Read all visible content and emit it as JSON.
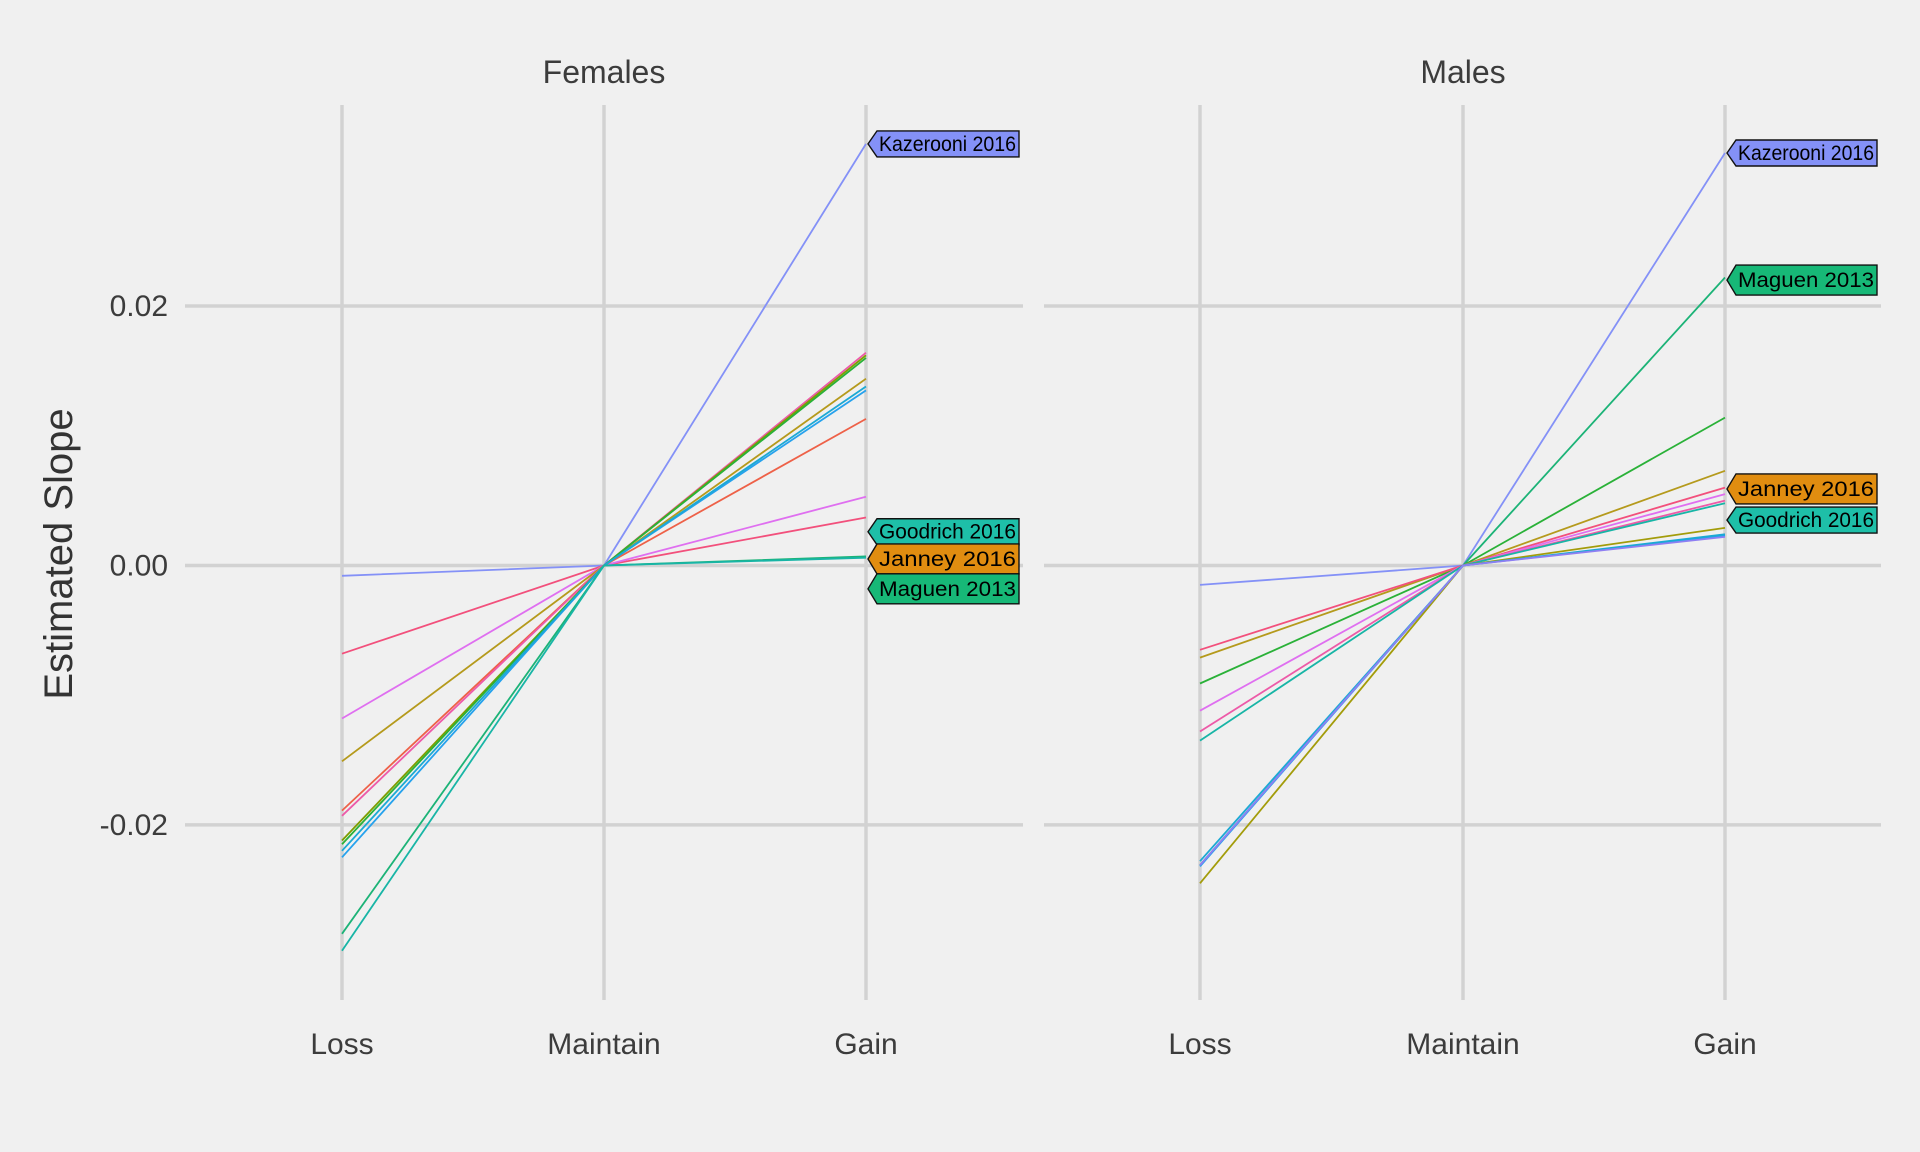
{
  "chart_data": {
    "type": "line",
    "ylabel": "Estimated Slope",
    "ylim": [
      -0.0335,
      0.0355
    ],
    "yticks": [
      -0.02,
      0.0,
      0.02
    ],
    "ytick_labels": [
      "-0.02",
      "0.00",
      "0.02"
    ],
    "categories": [
      "Loss",
      "Maintain",
      "Gain"
    ],
    "panels": [
      {
        "title": "Females",
        "series": [
          {
            "color": "#8491f7",
            "values": [
              -0.0008,
              0.0,
              0.0325
            ]
          },
          {
            "color": "#f2507c",
            "values": [
              -0.0068,
              0.0,
              0.0037
            ]
          },
          {
            "color": "#df6ff0",
            "values": [
              -0.0118,
              0.0,
              0.0053
            ]
          },
          {
            "color": "#b59a1c",
            "values": [
              -0.0151,
              0.0,
              0.0144
            ]
          },
          {
            "color": "#ee6148",
            "values": [
              -0.0189,
              0.0,
              0.0113
            ]
          },
          {
            "color": "#ed5aa8",
            "values": [
              -0.0193,
              0.0,
              0.0164
            ]
          },
          {
            "color": "#7f9e00",
            "values": [
              -0.0212,
              0.0,
              0.0162
            ]
          },
          {
            "color": "#2ab138",
            "values": [
              -0.0215,
              0.0,
              0.016
            ]
          },
          {
            "color": "#26a2ed",
            "values": [
              -0.0225,
              0.0,
              0.0135
            ]
          },
          {
            "color": "#1ba9d4",
            "values": [
              -0.022,
              0.0,
              0.0138
            ]
          },
          {
            "color": "#1cb377",
            "values": [
              -0.0284,
              0.0,
              0.0007
            ]
          },
          {
            "color": "#18b5a6",
            "values": [
              -0.0297,
              0.0,
              0.0006
            ]
          }
        ],
        "labels": [
          {
            "text": "Kazerooni 2016",
            "value": 0.0325,
            "fill": "#8491f7"
          },
          {
            "text": "Goodrich 2016",
            "value": 0.0026,
            "fill": "#1ebfa8"
          },
          {
            "text": "Janney 2016",
            "value": 0.0005,
            "fill": "#e18d10"
          },
          {
            "text": "Maguen 2013",
            "value": -0.0018,
            "fill": "#17b877"
          }
        ]
      },
      {
        "title": "Males",
        "series": [
          {
            "color": "#8491f7",
            "values": [
              -0.0015,
              0.0,
              0.0318
            ]
          },
          {
            "color": "#1cb377",
            "values": [
              -0.0231,
              0.0,
              0.0222
            ]
          },
          {
            "color": "#2ab138",
            "values": [
              -0.0091,
              0.0,
              0.0114
            ]
          },
          {
            "color": "#b59a1c",
            "values": [
              -0.0071,
              0.0,
              0.0073
            ]
          },
          {
            "color": "#f2507c",
            "values": [
              -0.0065,
              0.0,
              0.006
            ]
          },
          {
            "color": "#df6ff0",
            "values": [
              -0.0112,
              0.0,
              0.0055
            ]
          },
          {
            "color": "#ed5aa8",
            "values": [
              -0.0128,
              0.0,
              0.005
            ]
          },
          {
            "color": "#18b5a6",
            "values": [
              -0.0135,
              0.0,
              0.0048
            ]
          },
          {
            "color": "#a39c0a",
            "values": [
              -0.0245,
              0.0,
              0.0029
            ]
          },
          {
            "color": "#26a2ed",
            "values": [
              -0.0232,
              0.0,
              0.0023
            ]
          },
          {
            "color": "#1ba9d4",
            "values": [
              -0.0228,
              0.0,
              0.0024
            ]
          },
          {
            "color": "#8f7ff2",
            "values": [
              -0.0231,
              0.0,
              0.0022
            ]
          }
        ],
        "labels": [
          {
            "text": "Kazerooni 2016",
            "value": 0.0318,
            "fill": "#8491f7"
          },
          {
            "text": "Maguen 2013",
            "value": 0.022,
            "fill": "#17b877"
          },
          {
            "text": "Janney 2016",
            "value": 0.0059,
            "fill": "#e18d10"
          },
          {
            "text": "Goodrich 2016",
            "value": 0.0035,
            "fill": "#1ebfa8"
          }
        ]
      }
    ]
  }
}
